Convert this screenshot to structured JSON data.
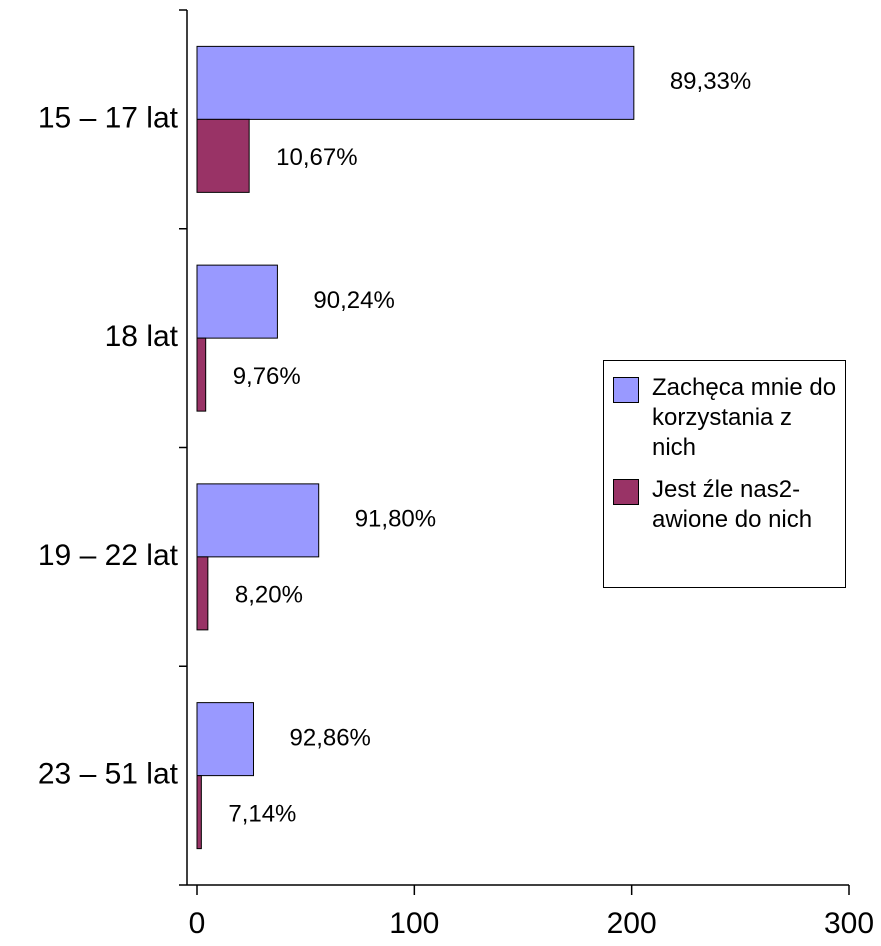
{
  "chart_data": {
    "type": "barh",
    "categories": [
      "15 – 17 lat",
      "18 lat",
      "19 – 22 lat",
      "23 – 51 lat"
    ],
    "series": [
      {
        "name": "Zachęca mnie do korzystania z nich",
        "color": "#9999ff",
        "values": [
          201,
          37,
          56,
          26
        ],
        "labels": [
          "89,33%",
          "90,24%",
          "91,80%",
          "92,86%"
        ]
      },
      {
        "name": "Jest źle nas2-awione do nich",
        "color": "#993366",
        "values": [
          24,
          4,
          5,
          2
        ],
        "labels": [
          "10,67%",
          "9,76%",
          "8,20%",
          "7,14%"
        ]
      }
    ],
    "xlim": [
      0,
      300
    ],
    "xticks": [
      0,
      100,
      200,
      300
    ],
    "grid": false,
    "legend": "right"
  }
}
